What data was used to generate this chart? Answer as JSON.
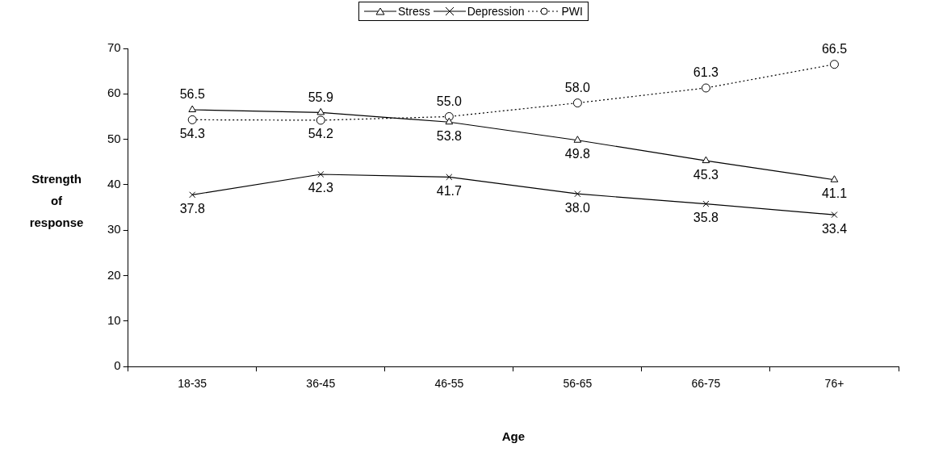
{
  "chart_data": {
    "type": "line",
    "xlabel": "Age",
    "ylabel": "Strength of response",
    "categories": [
      "18-35",
      "36-45",
      "46-55",
      "56-65",
      "66-75",
      "76+"
    ],
    "series": [
      {
        "name": "Stress",
        "color": "#000000",
        "marker": "triangle",
        "line_style": "solid",
        "values": [
          56.5,
          55.9,
          53.8,
          49.8,
          45.3,
          41.1
        ],
        "value_labels": [
          "56.5",
          "55.9",
          "53.8",
          "49.8",
          "45.3",
          "41.1"
        ]
      },
      {
        "name": "Depression",
        "color": "#000000",
        "marker": "cross",
        "line_style": "solid",
        "values": [
          37.8,
          42.3,
          41.7,
          38.0,
          35.8,
          33.4
        ],
        "value_labels": [
          "37.8",
          "42.3",
          "41.7",
          "38.0",
          "35.8",
          "33.4"
        ]
      },
      {
        "name": "PWI",
        "color": "#000000",
        "marker": "circle",
        "line_style": "dotted",
        "values": [
          54.3,
          54.2,
          55.0,
          58.0,
          61.3,
          66.5
        ],
        "value_labels": [
          "54.3",
          "54.2",
          "55.0",
          "58.0",
          "61.3",
          "66.5"
        ]
      }
    ],
    "ylim": [
      0,
      70
    ],
    "yticks": [
      0,
      10,
      20,
      30,
      40,
      50,
      60,
      70
    ],
    "grid": false,
    "legend": "top"
  }
}
